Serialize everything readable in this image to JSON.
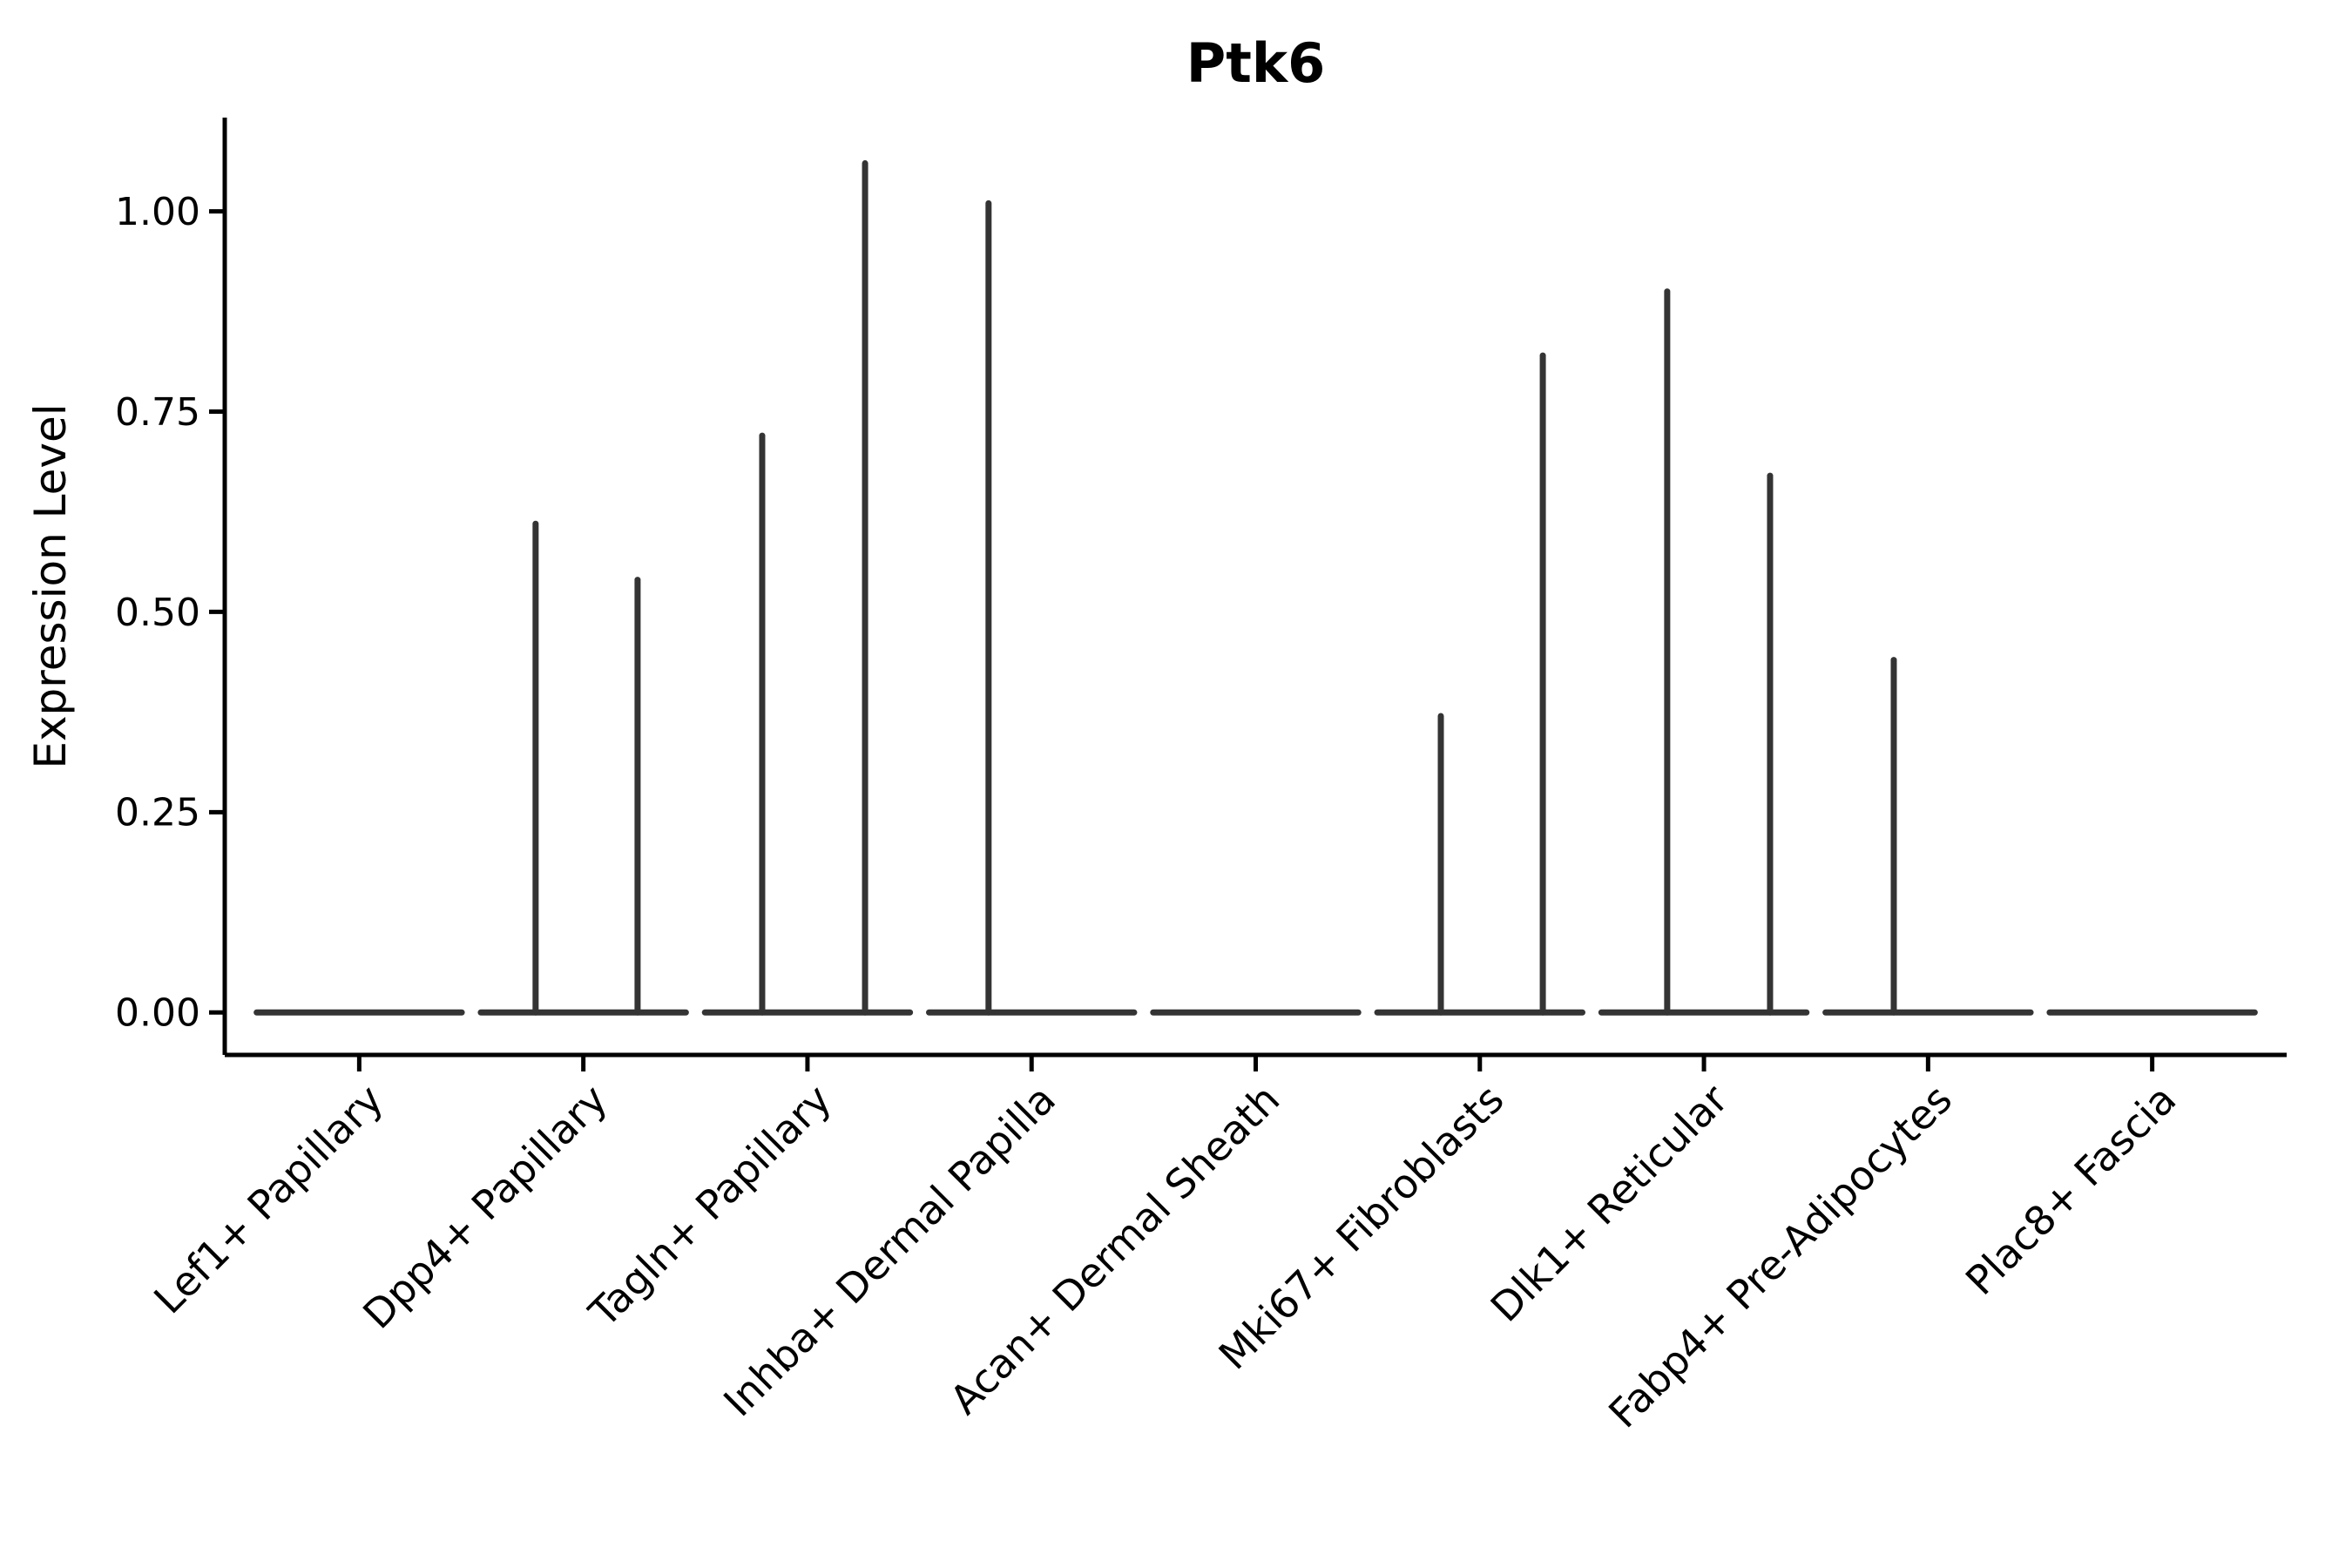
{
  "figure": {
    "background": "#ffffff"
  },
  "chart_data": {
    "type": "violin",
    "title": "Ptk6",
    "ylabel": "Expression Level",
    "xlabel": "",
    "grid": false,
    "legend": null,
    "ylim": [
      -0.053,
      1.117
    ],
    "yticks": [
      {
        "value": 0.0,
        "label": "0.00"
      },
      {
        "value": 0.25,
        "label": "0.25"
      },
      {
        "value": 0.5,
        "label": "0.50"
      },
      {
        "value": 0.75,
        "label": "0.75"
      },
      {
        "value": 1.0,
        "label": "1.00"
      }
    ],
    "categories": [
      "Lef1+ Papillary",
      "Dpp4+ Papillary",
      "Tagln+ Papillary",
      "Inhba+ Dermal Papilla",
      "Acan+ Dermal Sheath",
      "Mki67+ Fibroblasts",
      "Dlk1+ Reticular",
      "Fabp4+ Pre-Adipocytes",
      "Plac8+ Fascia"
    ],
    "violins": [
      {
        "category": "Lef1+ Papillary",
        "baseline_value": 0,
        "spikes": []
      },
      {
        "category": "Dpp4+ Papillary",
        "baseline_value": 0,
        "spikes": [
          {
            "offset": -0.213,
            "value": 0.61
          },
          {
            "offset": 0.242,
            "value": 0.54
          }
        ]
      },
      {
        "category": "Tagln+ Papillary",
        "baseline_value": 0,
        "spikes": [
          {
            "offset": -0.202,
            "value": 0.72
          },
          {
            "offset": 0.257,
            "value": 1.06
          }
        ]
      },
      {
        "category": "Inhba+ Dermal Papilla",
        "baseline_value": 0,
        "spikes": [
          {
            "offset": -0.192,
            "value": 1.01
          }
        ]
      },
      {
        "category": "Acan+ Dermal Sheath",
        "baseline_value": 0,
        "spikes": []
      },
      {
        "category": "Mki67+ Fibroblasts",
        "baseline_value": 0,
        "spikes": [
          {
            "offset": -0.174,
            "value": 0.37
          },
          {
            "offset": 0.281,
            "value": 0.82
          }
        ]
      },
      {
        "category": "Dlk1+ Reticular",
        "baseline_value": 0,
        "spikes": [
          {
            "offset": -0.164,
            "value": 0.9
          },
          {
            "offset": 0.295,
            "value": 0.67
          }
        ]
      },
      {
        "category": "Fabp4+ Pre-Adipocytes",
        "baseline_value": 0,
        "spikes": [
          {
            "offset": -0.153,
            "value": 0.44
          }
        ]
      },
      {
        "category": "Plac8+ Fascia",
        "baseline_value": 0,
        "spikes": []
      }
    ],
    "violin_rel_width": 0.915,
    "colors": {
      "violin_stroke": "#343434",
      "axis": "#000000",
      "text": "#000000"
    }
  }
}
